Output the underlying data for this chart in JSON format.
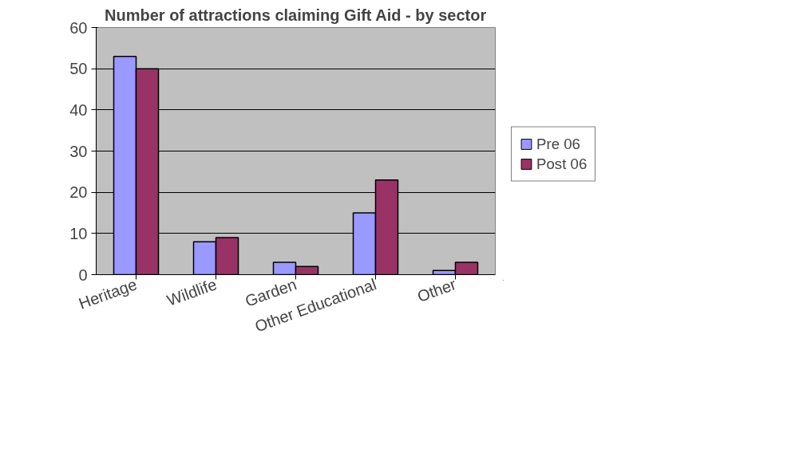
{
  "chart_data": {
    "type": "bar",
    "title": "Number of attractions claiming Gift Aid - by sector",
    "categories": [
      "Heritage",
      "Wildlife",
      "Garden",
      "Other Educational",
      "Other"
    ],
    "series": [
      {
        "name": "Pre 06",
        "color": "#9999ff",
        "values": [
          53,
          8,
          3,
          15,
          1
        ]
      },
      {
        "name": "Post 06",
        "color": "#993366",
        "values": [
          50,
          9,
          2,
          23,
          3
        ]
      }
    ],
    "ylim": [
      0,
      60
    ],
    "yticks": [
      0,
      10,
      20,
      30,
      40,
      50,
      60
    ],
    "grid": "y",
    "legend": "right"
  }
}
